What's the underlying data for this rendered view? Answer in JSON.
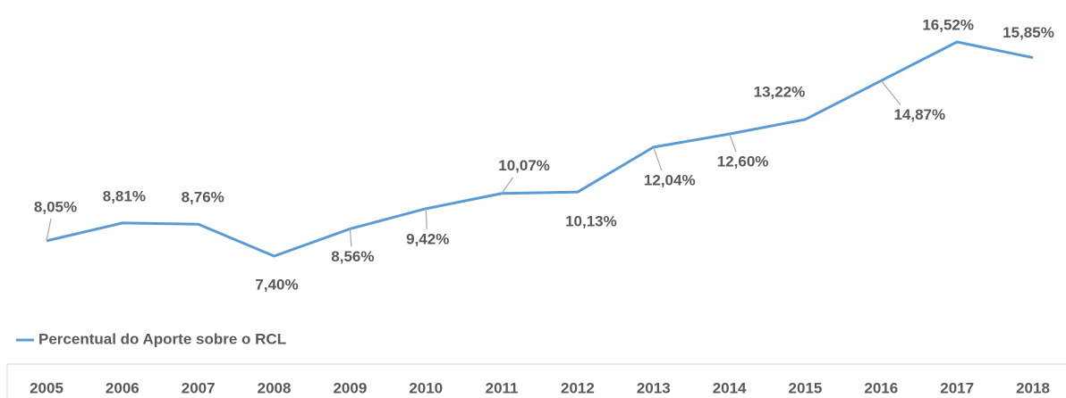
{
  "chart_data": {
    "type": "line",
    "categories": [
      "2005",
      "2006",
      "2007",
      "2008",
      "2009",
      "2010",
      "2011",
      "2012",
      "2013",
      "2014",
      "2015",
      "2016",
      "2017",
      "2018"
    ],
    "series": [
      {
        "name": "Percentual do Aporte sobre o RCL",
        "color": "#5b9bd5",
        "values": [
          8.05,
          8.81,
          8.76,
          7.4,
          8.56,
          9.42,
          10.07,
          10.13,
          12.04,
          12.6,
          13.22,
          14.87,
          16.52,
          15.85
        ],
        "value_labels": [
          "8,05%",
          "8,81%",
          "8,76%",
          "7,40%",
          "8,56%",
          "9,42%",
          "10,07%",
          "10,13%",
          "12,04%",
          "12,60%",
          "13,22%",
          "14,87%",
          "16,52%",
          "15,85%"
        ]
      }
    ]
  }
}
